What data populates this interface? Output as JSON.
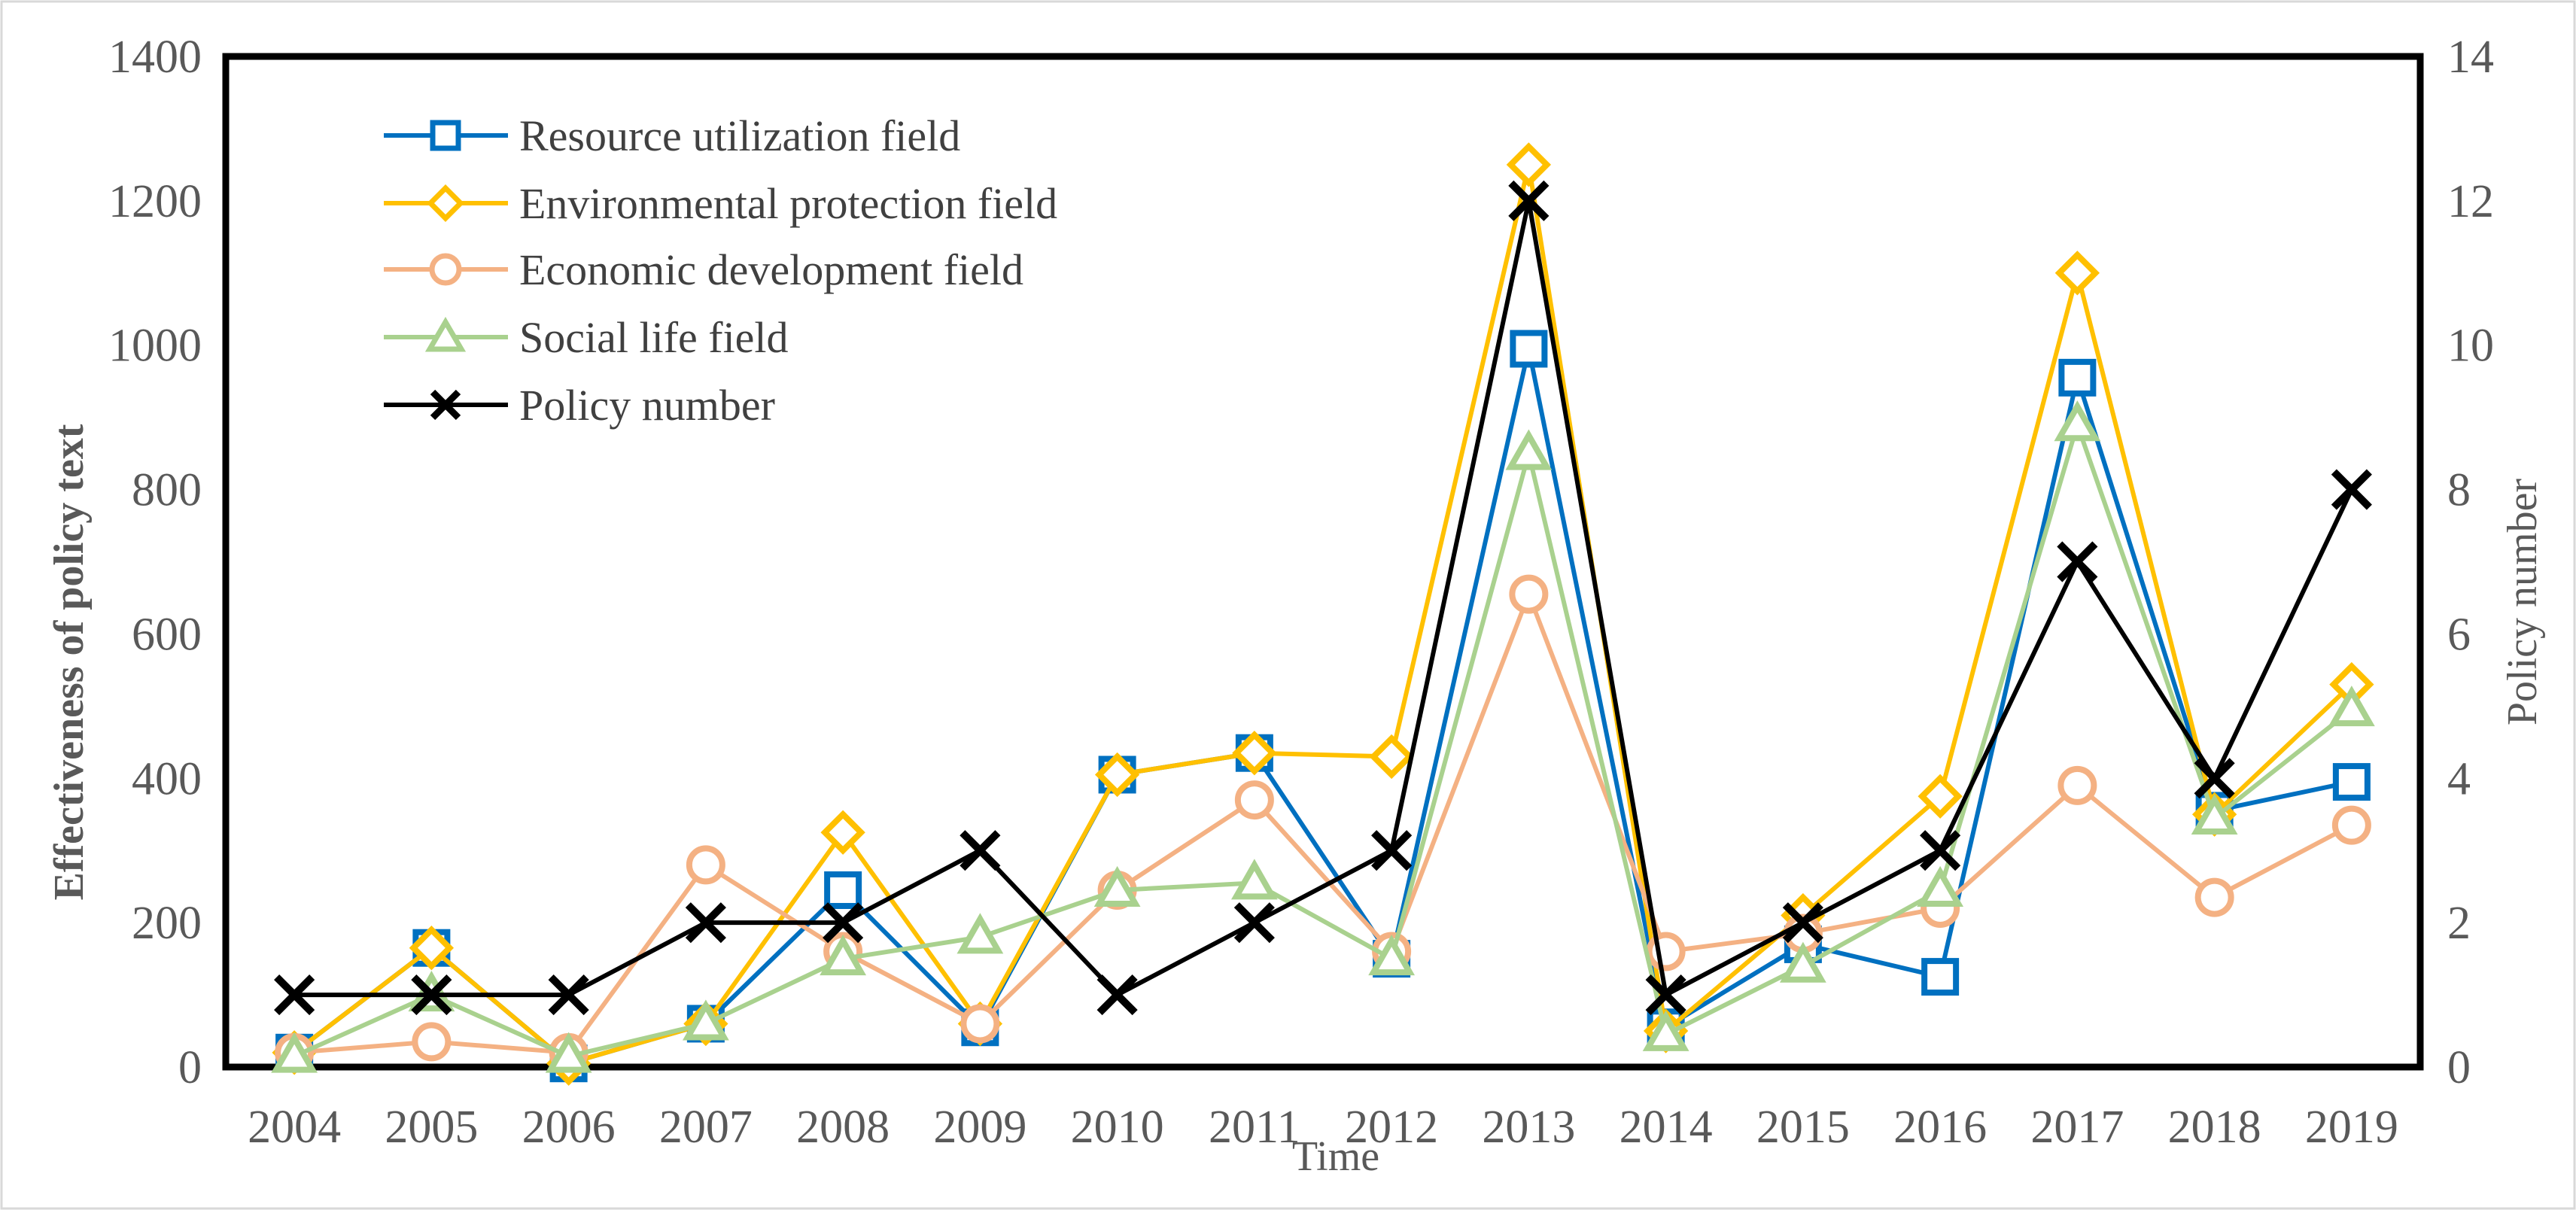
{
  "chart_data": {
    "type": "line",
    "title": "",
    "xlabel": "Time",
    "ylabel": "Effectiveness of policy text",
    "y2label": "Policy number",
    "ylim": [
      0,
      1400
    ],
    "y2lim": [
      0,
      14
    ],
    "yticks": [
      "0",
      "200",
      "400",
      "600",
      "800",
      "1000",
      "1200",
      "1400"
    ],
    "y2ticks": [
      "0",
      "2",
      "4",
      "6",
      "8",
      "10",
      "12",
      "14"
    ],
    "categories": [
      "2004",
      "2005",
      "2006",
      "2007",
      "2008",
      "2009",
      "2010",
      "2011",
      "2012",
      "2013",
      "2014",
      "2015",
      "2016",
      "2017",
      "2018",
      "2019"
    ],
    "legend_position": "top-left",
    "grid": false,
    "series": [
      {
        "name": "Resource utilization field",
        "axis": "left",
        "color": "#0070C0",
        "marker": "square",
        "values": [
          20,
          165,
          5,
          60,
          245,
          55,
          405,
          435,
          150,
          995,
          55,
          170,
          125,
          955,
          355,
          395
        ]
      },
      {
        "name": "Environmental protection field",
        "axis": "left",
        "color": "#FFC000",
        "marker": "diamond",
        "values": [
          20,
          165,
          5,
          60,
          325,
          60,
          405,
          435,
          430,
          1250,
          50,
          210,
          375,
          1100,
          350,
          530
        ]
      },
      {
        "name": "Economic development field",
        "axis": "left",
        "color": "#F4B183",
        "marker": "circle",
        "values": [
          20,
          35,
          20,
          280,
          160,
          60,
          245,
          370,
          160,
          655,
          160,
          185,
          220,
          390,
          235,
          335
        ]
      },
      {
        "name": "Social life field",
        "axis": "left",
        "color": "#A9D18E",
        "marker": "triangle",
        "values": [
          15,
          100,
          15,
          60,
          150,
          180,
          245,
          255,
          150,
          850,
          45,
          140,
          245,
          890,
          345,
          495
        ]
      },
      {
        "name": "Policy number",
        "axis": "right",
        "color": "#000000",
        "marker": "x",
        "values": [
          1,
          1,
          1,
          2,
          2,
          3,
          1,
          2,
          3,
          12,
          1,
          2,
          3,
          7,
          4,
          8
        ]
      }
    ]
  }
}
